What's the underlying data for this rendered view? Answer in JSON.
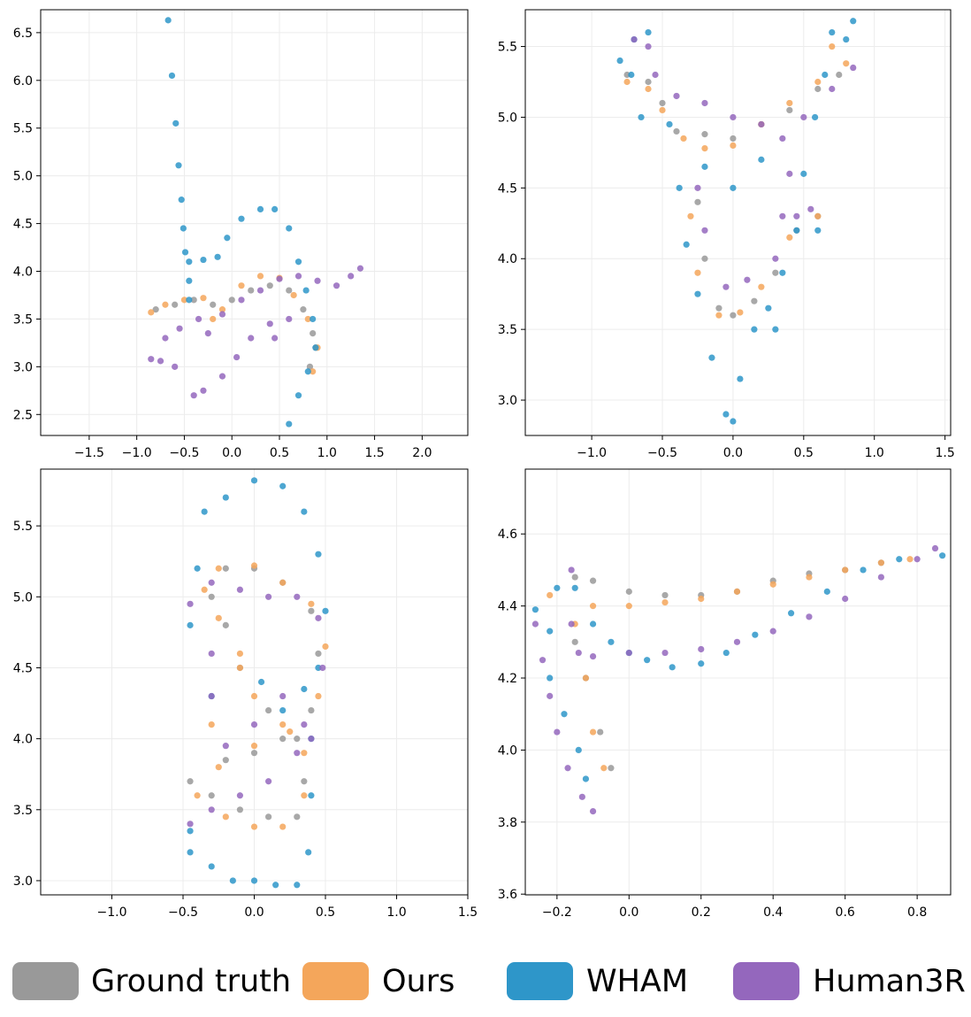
{
  "chart_data": [
    {
      "type": "scatter",
      "xlim": [
        -2.01,
        2.48
      ],
      "ylim": [
        2.28,
        6.74
      ],
      "xticks": [
        {
          "value": -1.5,
          "label": "−1.5"
        },
        {
          "value": -1.0,
          "label": "−1.0"
        },
        {
          "value": -0.5,
          "label": "−0.5"
        },
        {
          "value": 0,
          "label": "0.0"
        },
        0.5,
        {
          "value": 1,
          "label": "1.0"
        },
        1.5,
        {
          "value": 2,
          "label": "2.0"
        }
      ],
      "yticks": [
        2.5,
        {
          "value": 3,
          "label": "3.0"
        },
        3.5,
        {
          "value": 4,
          "label": "4.0"
        },
        4.5,
        {
          "value": 5,
          "label": "5.0"
        },
        5.5,
        {
          "value": 6,
          "label": "6.0"
        },
        6.5
      ],
      "grid": true,
      "series": [
        {
          "name": "Ground truth",
          "color": "#999999",
          "x": [
            -0.8,
            -0.6,
            -0.4,
            -0.2,
            0,
            0.2,
            0.4,
            0.6,
            0.75,
            0.85,
            0.88,
            0.82
          ],
          "y": [
            3.6,
            3.65,
            3.7,
            3.65,
            3.7,
            3.8,
            3.85,
            3.8,
            3.6,
            3.35,
            3.2,
            3.0
          ]
        },
        {
          "name": "Ours",
          "color": "#f4a65b",
          "x": [
            -0.85,
            -0.7,
            -0.5,
            -0.3,
            -0.2,
            -0.1,
            0.1,
            0.3,
            0.5,
            0.65,
            0.8,
            0.9,
            0.85
          ],
          "y": [
            3.57,
            3.65,
            3.7,
            3.72,
            3.5,
            3.6,
            3.85,
            3.95,
            3.93,
            3.75,
            3.5,
            3.2,
            2.95
          ]
        },
        {
          "name": "WHAM",
          "color": "#2e96c9",
          "x": [
            -0.67,
            -0.63,
            -0.59,
            -0.56,
            -0.53,
            -0.51,
            -0.49,
            -0.45,
            -0.45,
            -0.45,
            -0.3,
            -0.15,
            -0.05,
            0.1,
            0.3,
            0.45,
            0.6,
            0.7,
            0.78,
            0.85,
            0.88,
            0.8,
            0.7,
            0.6
          ],
          "y": [
            6.63,
            6.05,
            5.55,
            5.11,
            4.75,
            4.45,
            4.2,
            4.1,
            3.9,
            3.7,
            4.12,
            4.15,
            4.35,
            4.55,
            4.65,
            4.65,
            4.45,
            4.1,
            3.8,
            3.5,
            3.2,
            2.95,
            2.7,
            2.4
          ]
        },
        {
          "name": "Human3R",
          "color": "#9467bd",
          "x": [
            -0.85,
            -0.75,
            -0.7,
            -0.55,
            -0.35,
            -0.25,
            -0.1,
            0.1,
            0.3,
            0.5,
            0.7,
            0.9,
            1.1,
            1.25,
            1.35,
            0.6,
            0.45,
            0.4,
            0.2,
            0.05,
            -0.1,
            -0.3,
            -0.4,
            -0.6
          ],
          "y": [
            3.08,
            3.06,
            3.3,
            3.4,
            3.5,
            3.35,
            3.55,
            3.7,
            3.8,
            3.92,
            3.95,
            3.9,
            3.85,
            3.95,
            4.03,
            3.5,
            3.3,
            3.45,
            3.3,
            3.1,
            2.9,
            2.75,
            2.7,
            3.0
          ]
        }
      ]
    },
    {
      "type": "scatter",
      "xlim": [
        -1.47,
        1.54
      ],
      "ylim": [
        2.75,
        5.76
      ],
      "xticks": [
        {
          "value": -1,
          "label": "−1.0"
        },
        {
          "value": -0.5,
          "label": "−0.5"
        },
        {
          "value": 0,
          "label": "0.0"
        },
        0.5,
        {
          "value": 1,
          "label": "1.0"
        },
        1.5
      ],
      "yticks": [
        {
          "value": 3,
          "label": "3.0"
        },
        3.5,
        {
          "value": 4,
          "label": "4.0"
        },
        4.5,
        {
          "value": 5,
          "label": "5.0"
        },
        5.5
      ],
      "grid": true,
      "series": [
        {
          "name": "Ground truth",
          "color": "#999999",
          "x": [
            -0.75,
            -0.6,
            -0.5,
            -0.4,
            -0.2,
            0,
            0.2,
            0.4,
            0.6,
            0.75,
            -0.25,
            -0.2,
            -0.1,
            0,
            0.15,
            0.3,
            0.45,
            0.6
          ],
          "y": [
            5.3,
            5.25,
            5.1,
            4.9,
            4.88,
            4.85,
            4.95,
            5.05,
            5.2,
            5.3,
            4.4,
            4.0,
            3.65,
            3.6,
            3.7,
            3.9,
            4.2,
            4.3
          ]
        },
        {
          "name": "Ours",
          "color": "#f4a65b",
          "x": [
            -0.75,
            -0.6,
            -0.5,
            -0.35,
            -0.2,
            0,
            0.2,
            0.4,
            0.6,
            0.8,
            0.7,
            -0.3,
            -0.25,
            -0.1,
            0.05,
            0.2,
            0.4,
            0.6
          ],
          "y": [
            5.25,
            5.2,
            5.05,
            4.85,
            4.78,
            4.8,
            4.95,
            5.1,
            5.25,
            5.38,
            5.5,
            4.3,
            3.9,
            3.6,
            3.62,
            3.8,
            4.15,
            4.3
          ]
        },
        {
          "name": "WHAM",
          "color": "#2e96c9",
          "x": [
            -0.8,
            -0.7,
            -0.6,
            -0.72,
            -0.65,
            -0.45,
            -0.38,
            -0.33,
            -0.25,
            -0.15,
            -0.05,
            0,
            0.05,
            0.15,
            0.25,
            0.3,
            0.35,
            0.45,
            0.6,
            0.5,
            0.58,
            0.65,
            0.8,
            0.85,
            0.7,
            0.2,
            0,
            -0.2
          ],
          "y": [
            5.4,
            5.55,
            5.6,
            5.3,
            5.0,
            4.95,
            4.5,
            4.1,
            3.75,
            3.3,
            2.9,
            2.85,
            3.15,
            3.5,
            3.65,
            3.5,
            3.9,
            4.2,
            4.2,
            4.6,
            5.0,
            5.3,
            5.55,
            5.68,
            5.6,
            4.7,
            4.5,
            4.65
          ]
        },
        {
          "name": "Human3R",
          "color": "#9467bd",
          "x": [
            -0.7,
            -0.6,
            -0.55,
            -0.4,
            -0.2,
            0,
            0.2,
            0.35,
            0.5,
            0.7,
            0.85,
            0.4,
            0.35,
            0.3,
            0.1,
            -0.05,
            -0.2,
            -0.25,
            0.45,
            0.55
          ],
          "y": [
            5.55,
            5.5,
            5.3,
            5.15,
            5.1,
            5.0,
            4.95,
            4.85,
            5.0,
            5.2,
            5.35,
            4.6,
            4.3,
            4.0,
            3.85,
            3.8,
            4.2,
            4.5,
            4.3,
            4.35
          ]
        }
      ]
    },
    {
      "type": "scatter",
      "xlim": [
        -1.5,
        1.5
      ],
      "ylim": [
        2.9,
        5.9
      ],
      "xticks": [
        {
          "value": -1,
          "label": "−1.0"
        },
        {
          "value": -0.5,
          "label": "−0.5"
        },
        {
          "value": 0,
          "label": "0.0"
        },
        0.5,
        {
          "value": 1,
          "label": "1.0"
        },
        1.5
      ],
      "yticks": [
        {
          "value": 3,
          "label": "3.0"
        },
        3.5,
        {
          "value": 4,
          "label": "4.0"
        },
        4.5,
        {
          "value": 5,
          "label": "5.0"
        },
        5.5
      ],
      "grid": true,
      "series": [
        {
          "name": "Ground truth",
          "color": "#999999",
          "x": [
            -0.45,
            -0.3,
            -0.1,
            0.1,
            0.3,
            0.35,
            0.3,
            0.1,
            -0.1,
            -0.2,
            -0.3,
            -0.2,
            0,
            0.2,
            0.4,
            0.45,
            0.4,
            0.2,
            0,
            -0.2
          ],
          "y": [
            3.7,
            3.6,
            3.5,
            3.45,
            3.45,
            3.7,
            4.0,
            4.2,
            4.5,
            4.8,
            5.0,
            5.2,
            5.2,
            5.1,
            4.9,
            4.6,
            4.2,
            4.0,
            3.9,
            3.85
          ]
        },
        {
          "name": "Ours",
          "color": "#f4a65b",
          "x": [
            -0.4,
            -0.2,
            0,
            0.2,
            0.35,
            0.35,
            0.2,
            0,
            -0.1,
            -0.25,
            -0.35,
            -0.25,
            0,
            0.2,
            0.4,
            0.5,
            0.45,
            0.25,
            0,
            -0.25,
            -0.1,
            -0.3
          ],
          "y": [
            3.6,
            3.45,
            3.38,
            3.38,
            3.6,
            3.9,
            4.1,
            4.3,
            4.5,
            4.85,
            5.05,
            5.2,
            5.22,
            5.1,
            4.95,
            4.65,
            4.3,
            4.05,
            3.95,
            3.8,
            4.6,
            4.1
          ]
        },
        {
          "name": "WHAM",
          "color": "#2e96c9",
          "x": [
            -0.45,
            -0.45,
            -0.3,
            -0.15,
            0,
            0.15,
            0.3,
            0.38,
            0.4,
            0.4,
            0.45,
            0.5,
            0.45,
            0.35,
            0.2,
            0,
            -0.2,
            -0.35,
            -0.4,
            -0.45,
            -0.3,
            0.05,
            0.2,
            0.35
          ],
          "y": [
            3.35,
            3.2,
            3.1,
            3.0,
            3.0,
            2.97,
            2.97,
            3.2,
            3.6,
            4.0,
            4.5,
            4.9,
            5.3,
            5.6,
            5.78,
            5.82,
            5.7,
            5.6,
            5.2,
            4.8,
            4.3,
            4.4,
            4.2,
            4.35
          ]
        },
        {
          "name": "Human3R",
          "color": "#9467bd",
          "x": [
            -0.45,
            -0.3,
            -0.1,
            0.1,
            0.3,
            0.35,
            0.2,
            0,
            -0.2,
            -0.3,
            -0.3,
            -0.45,
            -0.3,
            -0.1,
            0.1,
            0.3,
            0.45,
            0.48,
            0.4
          ],
          "y": [
            3.4,
            3.5,
            3.6,
            3.7,
            3.9,
            4.1,
            4.3,
            4.1,
            3.95,
            4.3,
            4.6,
            4.95,
            5.1,
            5.05,
            5.0,
            5.0,
            4.85,
            4.5,
            4.0
          ]
        }
      ]
    },
    {
      "type": "scatter",
      "xlim": [
        -0.288,
        0.893
      ],
      "ylim": [
        3.598,
        4.78
      ],
      "xticks": [
        {
          "value": -0.2,
          "label": "−0.2"
        },
        {
          "value": 0,
          "label": "0.0"
        },
        0.2,
        0.4,
        0.6,
        0.8
      ],
      "yticks": [
        3.6,
        3.8,
        {
          "value": 4,
          "label": "4.0"
        },
        4.2,
        4.4,
        4.6
      ],
      "grid": true,
      "series": [
        {
          "name": "Ground truth",
          "color": "#999999",
          "x": [
            -0.15,
            -0.1,
            0,
            0.1,
            0.2,
            0.3,
            0.4,
            0.5,
            0.6,
            0.7,
            -0.15,
            -0.12,
            -0.08,
            -0.05
          ],
          "y": [
            4.48,
            4.47,
            4.44,
            4.43,
            4.43,
            4.44,
            4.47,
            4.49,
            4.5,
            4.52,
            4.3,
            4.2,
            4.05,
            3.95
          ]
        },
        {
          "name": "Ours",
          "color": "#f4a65b",
          "x": [
            -0.22,
            -0.1,
            0,
            0.1,
            0.2,
            0.3,
            0.4,
            0.5,
            0.6,
            0.7,
            0.78,
            -0.15,
            -0.12,
            -0.1,
            -0.07
          ],
          "y": [
            4.43,
            4.4,
            4.4,
            4.41,
            4.42,
            4.44,
            4.46,
            4.48,
            4.5,
            4.52,
            4.53,
            4.35,
            4.2,
            4.05,
            3.95
          ]
        },
        {
          "name": "WHAM",
          "color": "#2e96c9",
          "x": [
            -0.26,
            -0.22,
            -0.2,
            -0.15,
            -0.1,
            -0.05,
            0,
            0.05,
            0.12,
            0.2,
            0.27,
            0.35,
            0.45,
            0.55,
            0.65,
            0.75,
            0.87,
            -0.22,
            -0.18,
            -0.14,
            -0.12
          ],
          "y": [
            4.39,
            4.33,
            4.45,
            4.45,
            4.35,
            4.3,
            4.27,
            4.25,
            4.23,
            4.24,
            4.27,
            4.32,
            4.38,
            4.44,
            4.5,
            4.53,
            4.54,
            4.2,
            4.1,
            4.0,
            3.92
          ]
        },
        {
          "name": "Human3R",
          "color": "#9467bd",
          "x": [
            -0.26,
            -0.24,
            -0.22,
            -0.2,
            -0.17,
            -0.13,
            -0.1,
            -0.16,
            -0.16,
            -0.14,
            -0.1,
            0,
            0.1,
            0.2,
            0.3,
            0.4,
            0.5,
            0.6,
            0.7,
            0.8,
            0.85
          ],
          "y": [
            4.35,
            4.25,
            4.15,
            4.05,
            3.95,
            3.87,
            3.83,
            4.5,
            4.35,
            4.27,
            4.26,
            4.27,
            4.27,
            4.28,
            4.3,
            4.33,
            4.37,
            4.42,
            4.48,
            4.53,
            4.56
          ]
        }
      ]
    }
  ]
}
